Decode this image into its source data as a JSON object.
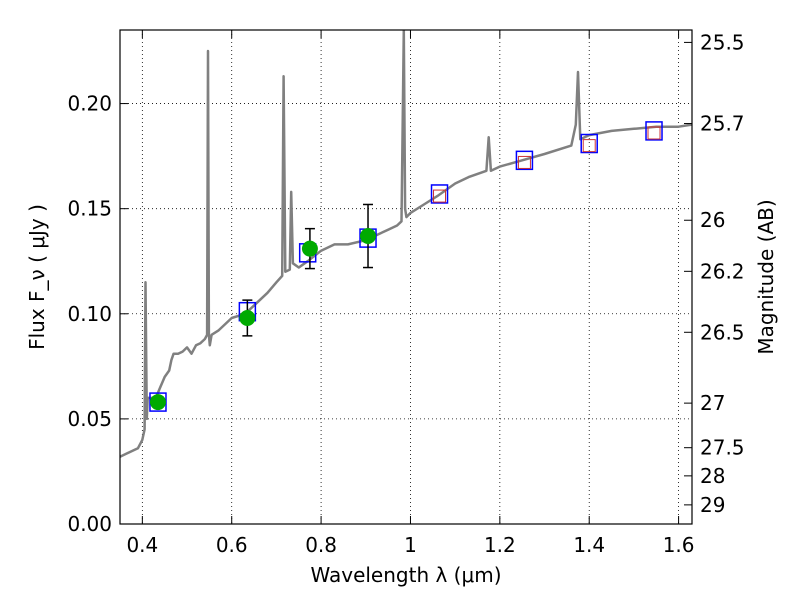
{
  "chart_data": {
    "type": "line",
    "xlabel": "Wavelength λ (μm)",
    "ylabel": "Flux  F_ν  ( μJy )",
    "y2label": "Magnitude (AB)",
    "xlim": [
      0.35,
      1.63
    ],
    "ylim": [
      0.0,
      0.235
    ],
    "grid": true,
    "x_ticks": [
      0.4,
      0.6,
      0.8,
      1.0,
      1.2,
      1.4,
      1.6
    ],
    "x_tick_labels": [
      "0.4",
      "0.6",
      "0.8",
      "1",
      "1.2",
      "1.4",
      "1.6"
    ],
    "y_ticks": [
      0.0,
      0.05,
      0.1,
      0.15,
      0.2
    ],
    "y_tick_labels": [
      "0.00",
      "0.05",
      "0.10",
      "0.15",
      "0.20"
    ],
    "y2_ticks": [
      {
        "label": "25.5",
        "flux": 0.2291
      },
      {
        "label": "25.7",
        "flux": 0.1905
      },
      {
        "label": "26",
        "flux": 0.1445
      },
      {
        "label": "26.2",
        "flux": 0.1202
      },
      {
        "label": "26.5",
        "flux": 0.0912
      },
      {
        "label": "27",
        "flux": 0.0575
      },
      {
        "label": "27.5",
        "flux": 0.0363
      },
      {
        "label": "28",
        "flux": 0.0229
      },
      {
        "label": "29",
        "flux": 0.0091
      }
    ],
    "series": [
      {
        "kind": "line",
        "color": "#808080",
        "x": [
          0.35,
          0.37,
          0.39,
          0.4,
          0.405,
          0.407,
          0.41,
          0.412,
          0.42,
          0.425,
          0.43,
          0.44,
          0.45,
          0.46,
          0.465,
          0.47,
          0.48,
          0.49,
          0.5,
          0.51,
          0.52,
          0.53,
          0.54,
          0.545,
          0.547,
          0.549,
          0.551,
          0.555,
          0.57,
          0.6,
          0.63,
          0.65,
          0.68,
          0.7,
          0.713,
          0.716,
          0.72,
          0.73,
          0.733,
          0.737,
          0.75,
          0.77,
          0.8,
          0.83,
          0.86,
          0.9,
          0.93,
          0.95,
          0.97,
          0.98,
          0.985,
          0.988,
          0.991,
          1.0,
          1.03,
          1.06,
          1.1,
          1.13,
          1.17,
          1.175,
          1.18,
          1.2,
          1.25,
          1.3,
          1.36,
          1.37,
          1.375,
          1.38,
          1.4,
          1.45,
          1.5,
          1.55,
          1.6,
          1.63
        ],
        "y": [
          0.032,
          0.034,
          0.036,
          0.04,
          0.045,
          0.115,
          0.05,
          0.06,
          0.06,
          0.058,
          0.06,
          0.065,
          0.07,
          0.073,
          0.078,
          0.081,
          0.081,
          0.082,
          0.084,
          0.081,
          0.085,
          0.086,
          0.088,
          0.09,
          0.225,
          0.09,
          0.085,
          0.09,
          0.092,
          0.098,
          0.1,
          0.104,
          0.11,
          0.115,
          0.118,
          0.213,
          0.12,
          0.121,
          0.158,
          0.124,
          0.122,
          0.125,
          0.13,
          0.133,
          0.133,
          0.135,
          0.138,
          0.14,
          0.142,
          0.144,
          0.235,
          0.15,
          0.146,
          0.148,
          0.152,
          0.156,
          0.162,
          0.165,
          0.168,
          0.184,
          0.168,
          0.17,
          0.173,
          0.176,
          0.18,
          0.19,
          0.215,
          0.183,
          0.185,
          0.187,
          0.188,
          0.189,
          0.189,
          0.19
        ]
      },
      {
        "kind": "blue-squares",
        "color": "#0000ff",
        "x": [
          0.435,
          0.635,
          0.77,
          0.905,
          1.065,
          1.255,
          1.4,
          1.545
        ],
        "y": [
          0.058,
          0.101,
          0.129,
          0.136,
          0.157,
          0.173,
          0.181,
          0.187
        ]
      },
      {
        "kind": "red-squares",
        "color": "#cc3333",
        "x": [
          1.065,
          1.255,
          1.4,
          1.545
        ],
        "y": [
          0.156,
          0.172,
          0.18,
          0.186
        ]
      },
      {
        "kind": "green-points",
        "color": "#00aa00",
        "x": [
          0.435,
          0.635,
          0.775,
          0.905
        ],
        "y": [
          0.058,
          0.098,
          0.131,
          0.137
        ],
        "yerr": [
          0.0,
          0.0085,
          0.0095,
          0.015
        ]
      }
    ]
  }
}
